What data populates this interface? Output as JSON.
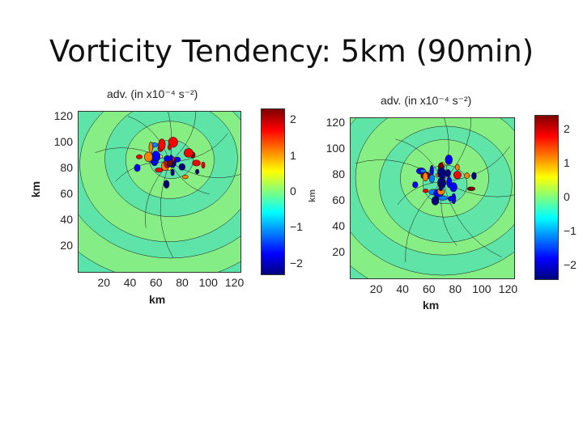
{
  "slide": {
    "title": "Vorticity Tendency: 5km (90min)"
  },
  "colors": {
    "colormap_jet": [
      "#00007f",
      "#0000ff",
      "#007fff",
      "#00ffff",
      "#7fff7f",
      "#ffff00",
      "#ff7f00",
      "#ff0000",
      "#7f0000"
    ],
    "background_field_left": "#4fe6a8",
    "background_field_right": "#5cf09a",
    "contour_line": "#1a1a1a"
  },
  "chart_data": [
    {
      "type": "heatmap",
      "title": "adv. (in x10⁻⁴ s⁻²)",
      "xlabel": "km",
      "ylabel": "km",
      "xlim": [
        0,
        124
      ],
      "ylim": [
        0,
        124
      ],
      "xticks": [
        "20",
        "40",
        "60",
        "80",
        "100",
        "120"
      ],
      "yticks": [
        "20",
        "40",
        "60",
        "80",
        "100",
        "120"
      ],
      "colorbar": {
        "range": [
          -2.3,
          2.3
        ],
        "ticks": [
          "2",
          "1",
          "0",
          "−1",
          "−2"
        ],
        "colormap": "jet"
      },
      "features": "Near-zero field with strong positive/negative tendency cells clustered around x 40-90 km, y 70-100 km; concentric wave bands extending outward",
      "active_region_center": [
        70,
        85
      ]
    },
    {
      "type": "heatmap",
      "title": "adv. (in x10⁻⁴ s⁻²)",
      "xlabel": "km",
      "ylabel": "km",
      "xlim": [
        0,
        124
      ],
      "ylim": [
        0,
        124
      ],
      "xticks": [
        "20",
        "40",
        "60",
        "80",
        "100",
        "120"
      ],
      "yticks": [
        "20",
        "40",
        "60",
        "80",
        "100",
        "120"
      ],
      "colorbar": {
        "range": [
          -2.4,
          2.4
        ],
        "ticks": [
          "2",
          "1",
          "0",
          "−1",
          "−2"
        ],
        "colormap": "jet"
      },
      "features": "Near-zero field with positive/negative tendency cells clustered around x 50-90 km, y 60-90 km; concentric wave bands extending outward",
      "active_region_center": [
        70,
        75
      ]
    }
  ]
}
